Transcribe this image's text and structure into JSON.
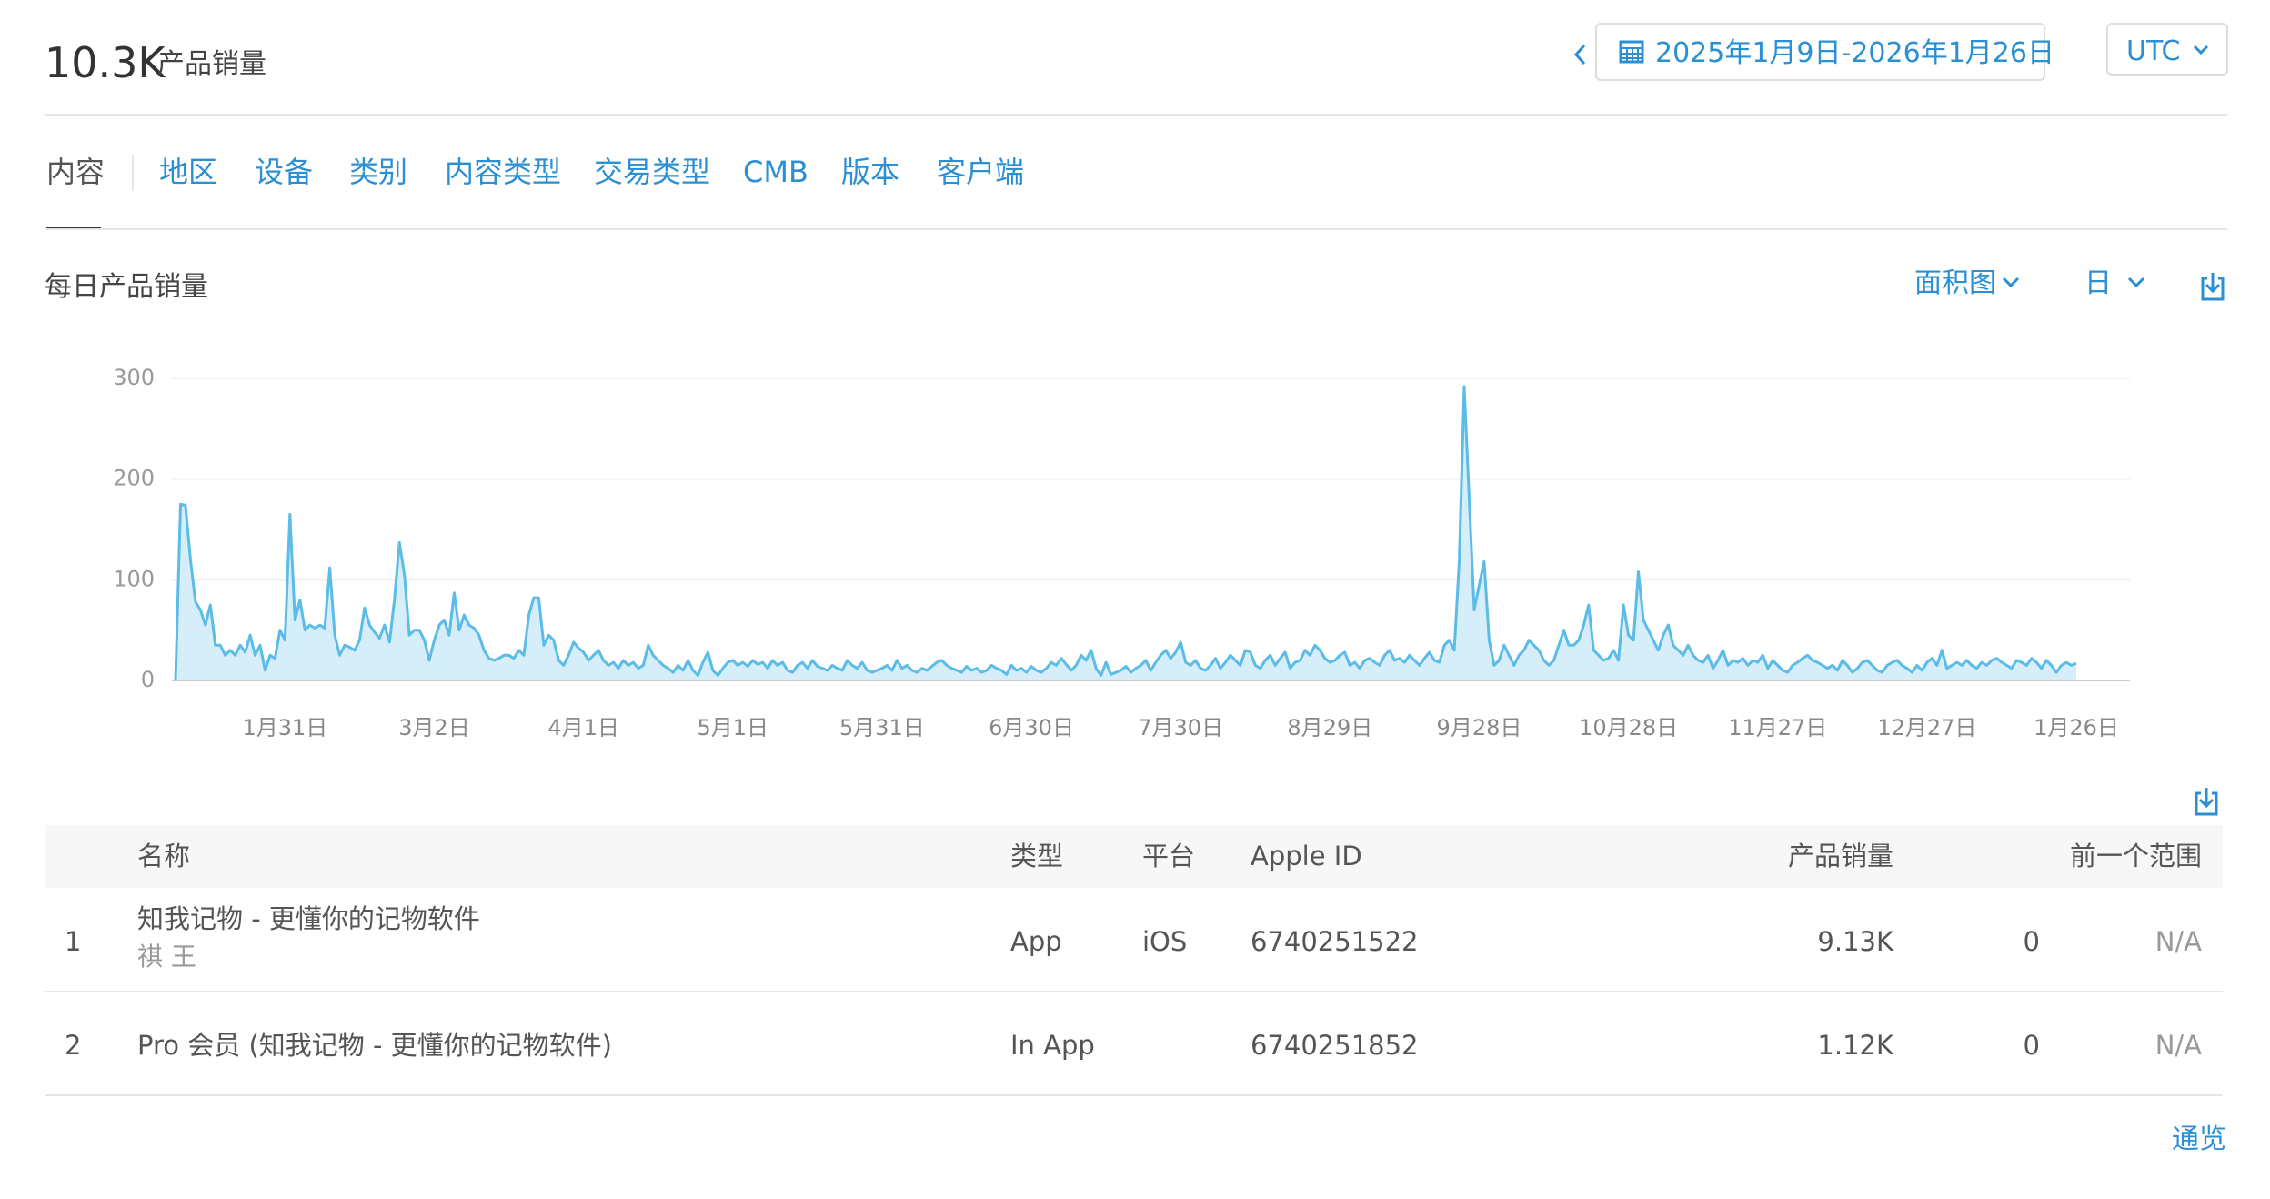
{
  "header": {
    "total": "10.3K",
    "total_label": "产品销量",
    "date_range": "2025年1月9日-2026年1月26日",
    "timezone": "UTC"
  },
  "tabs": [
    "内容",
    "地区",
    "设备",
    "类别",
    "内容类型",
    "交易类型",
    "CMB",
    "版本",
    "客户端"
  ],
  "chart_controls": {
    "chart_type": "面积图",
    "granularity": "日"
  },
  "chart_data": {
    "type": "area",
    "title": "每日产品销量",
    "categories": [
      null,
      null,
      null,
      null,
      null,
      null,
      null,
      null,
      null,
      null,
      null,
      null,
      null,
      null,
      null,
      null,
      null,
      null,
      null,
      null,
      null,
      null,
      "1月31日",
      null,
      null,
      null,
      null,
      null,
      null,
      null,
      null,
      null,
      null,
      null,
      null,
      null,
      null,
      null,
      null,
      null,
      null,
      null,
      null,
      null,
      null,
      null,
      null,
      null,
      null,
      null,
      null,
      null,
      "3月2日",
      null,
      null,
      null,
      null,
      null,
      null,
      null,
      null,
      null,
      null,
      null,
      null,
      null,
      null,
      null,
      null,
      null,
      null,
      null,
      null,
      null,
      null,
      null,
      null,
      null,
      null,
      null,
      null,
      null,
      "4月1日",
      null,
      null,
      null,
      null,
      null,
      null,
      null,
      null,
      null,
      null,
      null,
      null,
      null,
      null,
      null,
      null,
      null,
      null,
      null,
      null,
      null,
      null,
      null,
      null,
      null,
      null,
      null,
      null,
      null,
      "5月1日",
      null,
      null,
      null,
      null,
      null,
      null,
      null,
      null,
      null,
      null,
      null,
      null,
      null,
      null,
      null,
      null,
      null,
      null,
      null,
      null,
      null,
      null,
      null,
      null,
      null,
      null,
      null,
      null,
      null,
      "5月31日",
      null,
      null,
      null,
      null,
      null,
      null,
      null,
      null,
      null,
      null,
      null,
      null,
      null,
      null,
      null,
      null,
      null,
      null,
      null,
      null,
      null,
      null,
      null,
      null,
      null,
      null,
      null,
      null,
      null,
      "6月30日",
      null,
      null,
      null,
      null,
      null,
      null,
      null,
      null,
      null,
      null,
      null,
      null,
      null,
      null,
      null,
      null,
      null,
      null,
      null,
      null,
      null,
      null,
      null,
      null,
      null,
      null,
      null,
      null,
      null,
      "7月30日",
      null,
      null,
      null,
      null,
      null,
      null,
      null,
      null,
      null,
      null,
      null,
      null,
      null,
      null,
      null,
      null,
      null,
      null,
      null,
      null,
      null,
      null,
      null,
      null,
      null,
      null,
      null,
      null,
      null,
      "8月29日",
      null,
      null,
      null,
      null,
      null,
      null,
      null,
      null,
      null,
      null,
      null,
      null,
      null,
      null,
      null,
      null,
      null,
      null,
      null,
      null,
      null,
      null,
      null,
      null,
      null,
      null,
      null,
      null,
      null,
      "9月28日",
      null,
      null,
      null,
      null,
      null,
      null,
      null,
      null,
      null,
      null,
      null,
      null,
      null,
      null,
      null,
      null,
      null,
      null,
      null,
      null,
      null,
      null,
      null,
      null,
      null,
      null,
      null,
      null,
      null,
      "10月28日",
      null,
      null,
      null,
      null,
      null,
      null,
      null,
      null,
      null,
      null,
      null,
      null,
      null,
      null,
      null,
      null,
      null,
      null,
      null,
      null,
      null,
      null,
      null,
      null,
      null,
      null,
      null,
      null,
      null,
      "11月27日",
      null,
      null,
      null,
      null,
      null,
      null,
      null,
      null,
      null,
      null,
      null,
      null,
      null,
      null,
      null,
      null,
      null,
      null,
      null,
      null,
      null,
      null,
      null,
      null,
      null,
      null,
      null,
      null,
      null,
      "12月27日",
      null,
      null,
      null,
      null,
      null,
      null,
      null,
      null,
      null,
      null,
      null,
      null,
      null,
      null,
      null,
      null,
      null,
      null,
      null,
      null,
      null,
      null,
      null,
      null,
      null,
      null,
      null,
      null,
      null,
      "1月26日"
    ],
    "values": [
      0,
      175,
      174,
      120,
      78,
      70,
      55,
      75,
      35,
      35,
      25,
      30,
      25,
      35,
      28,
      45,
      25,
      35,
      10,
      25,
      22,
      50,
      40,
      165,
      60,
      80,
      50,
      55,
      52,
      55,
      52,
      112,
      45,
      25,
      35,
      33,
      30,
      40,
      72,
      55,
      48,
      42,
      55,
      38,
      80,
      137,
      105,
      45,
      50,
      50,
      40,
      20,
      40,
      55,
      60,
      45,
      87,
      50,
      65,
      55,
      52,
      45,
      30,
      22,
      20,
      22,
      25,
      25,
      22,
      30,
      25,
      65,
      82,
      82,
      35,
      45,
      40,
      20,
      15,
      25,
      38,
      32,
      28,
      20,
      25,
      30,
      20,
      15,
      18,
      12,
      20,
      15,
      18,
      12,
      15,
      35,
      25,
      20,
      15,
      12,
      8,
      15,
      10,
      20,
      10,
      5,
      18,
      28,
      10,
      5,
      12,
      18,
      20,
      15,
      18,
      14,
      20,
      16,
      18,
      12,
      20,
      15,
      18,
      10,
      8,
      15,
      18,
      12,
      20,
      14,
      12,
      10,
      15,
      12,
      10,
      20,
      15,
      12,
      18,
      10,
      8,
      10,
      12,
      15,
      10,
      20,
      12,
      15,
      10,
      8,
      12,
      10,
      14,
      18,
      20,
      15,
      12,
      10,
      8,
      14,
      10,
      12,
      8,
      10,
      15,
      12,
      10,
      6,
      15,
      10,
      12,
      8,
      14,
      10,
      8,
      12,
      18,
      15,
      22,
      16,
      10,
      15,
      25,
      20,
      30,
      12,
      5,
      18,
      6,
      8,
      10,
      14,
      8,
      12,
      15,
      20,
      10,
      18,
      25,
      30,
      22,
      28,
      38,
      18,
      15,
      20,
      12,
      10,
      15,
      22,
      12,
      18,
      25,
      20,
      15,
      30,
      28,
      15,
      12,
      20,
      25,
      15,
      22,
      28,
      12,
      18,
      20,
      30,
      25,
      35,
      30,
      22,
      18,
      20,
      25,
      28,
      15,
      18,
      12,
      20,
      22,
      18,
      15,
      25,
      30,
      20,
      22,
      18,
      25,
      20,
      15,
      22,
      28,
      20,
      18,
      35,
      40,
      30,
      120,
      292,
      180,
      70,
      95,
      118,
      40,
      15,
      20,
      35,
      25,
      15,
      25,
      30,
      40,
      35,
      30,
      20,
      15,
      20,
      35,
      50,
      35,
      35,
      40,
      55,
      75,
      30,
      25,
      20,
      22,
      30,
      20,
      75,
      45,
      40,
      108,
      60,
      50,
      40,
      30,
      45,
      55,
      35,
      30,
      25,
      35,
      25,
      20,
      18,
      25,
      12,
      20,
      30,
      15,
      20,
      18,
      22,
      15,
      20,
      18,
      25,
      12,
      20,
      15,
      10,
      8,
      15,
      18,
      22,
      25,
      20,
      18,
      15,
      12,
      15,
      10,
      20,
      15,
      8,
      12,
      18,
      20,
      15,
      10,
      8,
      15,
      18,
      20,
      15,
      12,
      8,
      15,
      10,
      18,
      22,
      15,
      30,
      12,
      15,
      18,
      15,
      20,
      15,
      12,
      18,
      15,
      20,
      22,
      18,
      15,
      12,
      20,
      18,
      15,
      22,
      18,
      12,
      20,
      15,
      8,
      15,
      18,
      15,
      17
    ],
    "color": "#5bbce8",
    "fill": "#d6eefa",
    "ylim": [
      0,
      300
    ],
    "yticks": [
      0,
      100,
      200,
      300
    ],
    "grid": true
  },
  "table": {
    "columns": [
      "名称",
      "类型",
      "平台",
      "Apple ID",
      "产品销量",
      "前一个范围"
    ],
    "rows": [
      {
        "rank": "1",
        "name": "知我记物 - 更懂你的记物软件",
        "developer": "祺 王",
        "type": "App",
        "platform": "iOS",
        "apple_id": "6740251522",
        "units": "9.13K",
        "previous": "0",
        "change": "N/A"
      },
      {
        "rank": "2",
        "name": "Pro 会员 (知我记物 - 更懂你的记物软件)",
        "type": "In App",
        "apple_id": "6740251852",
        "units": "1.12K",
        "previous": "0",
        "change": "N/A"
      }
    ]
  },
  "footer_link": "通览"
}
